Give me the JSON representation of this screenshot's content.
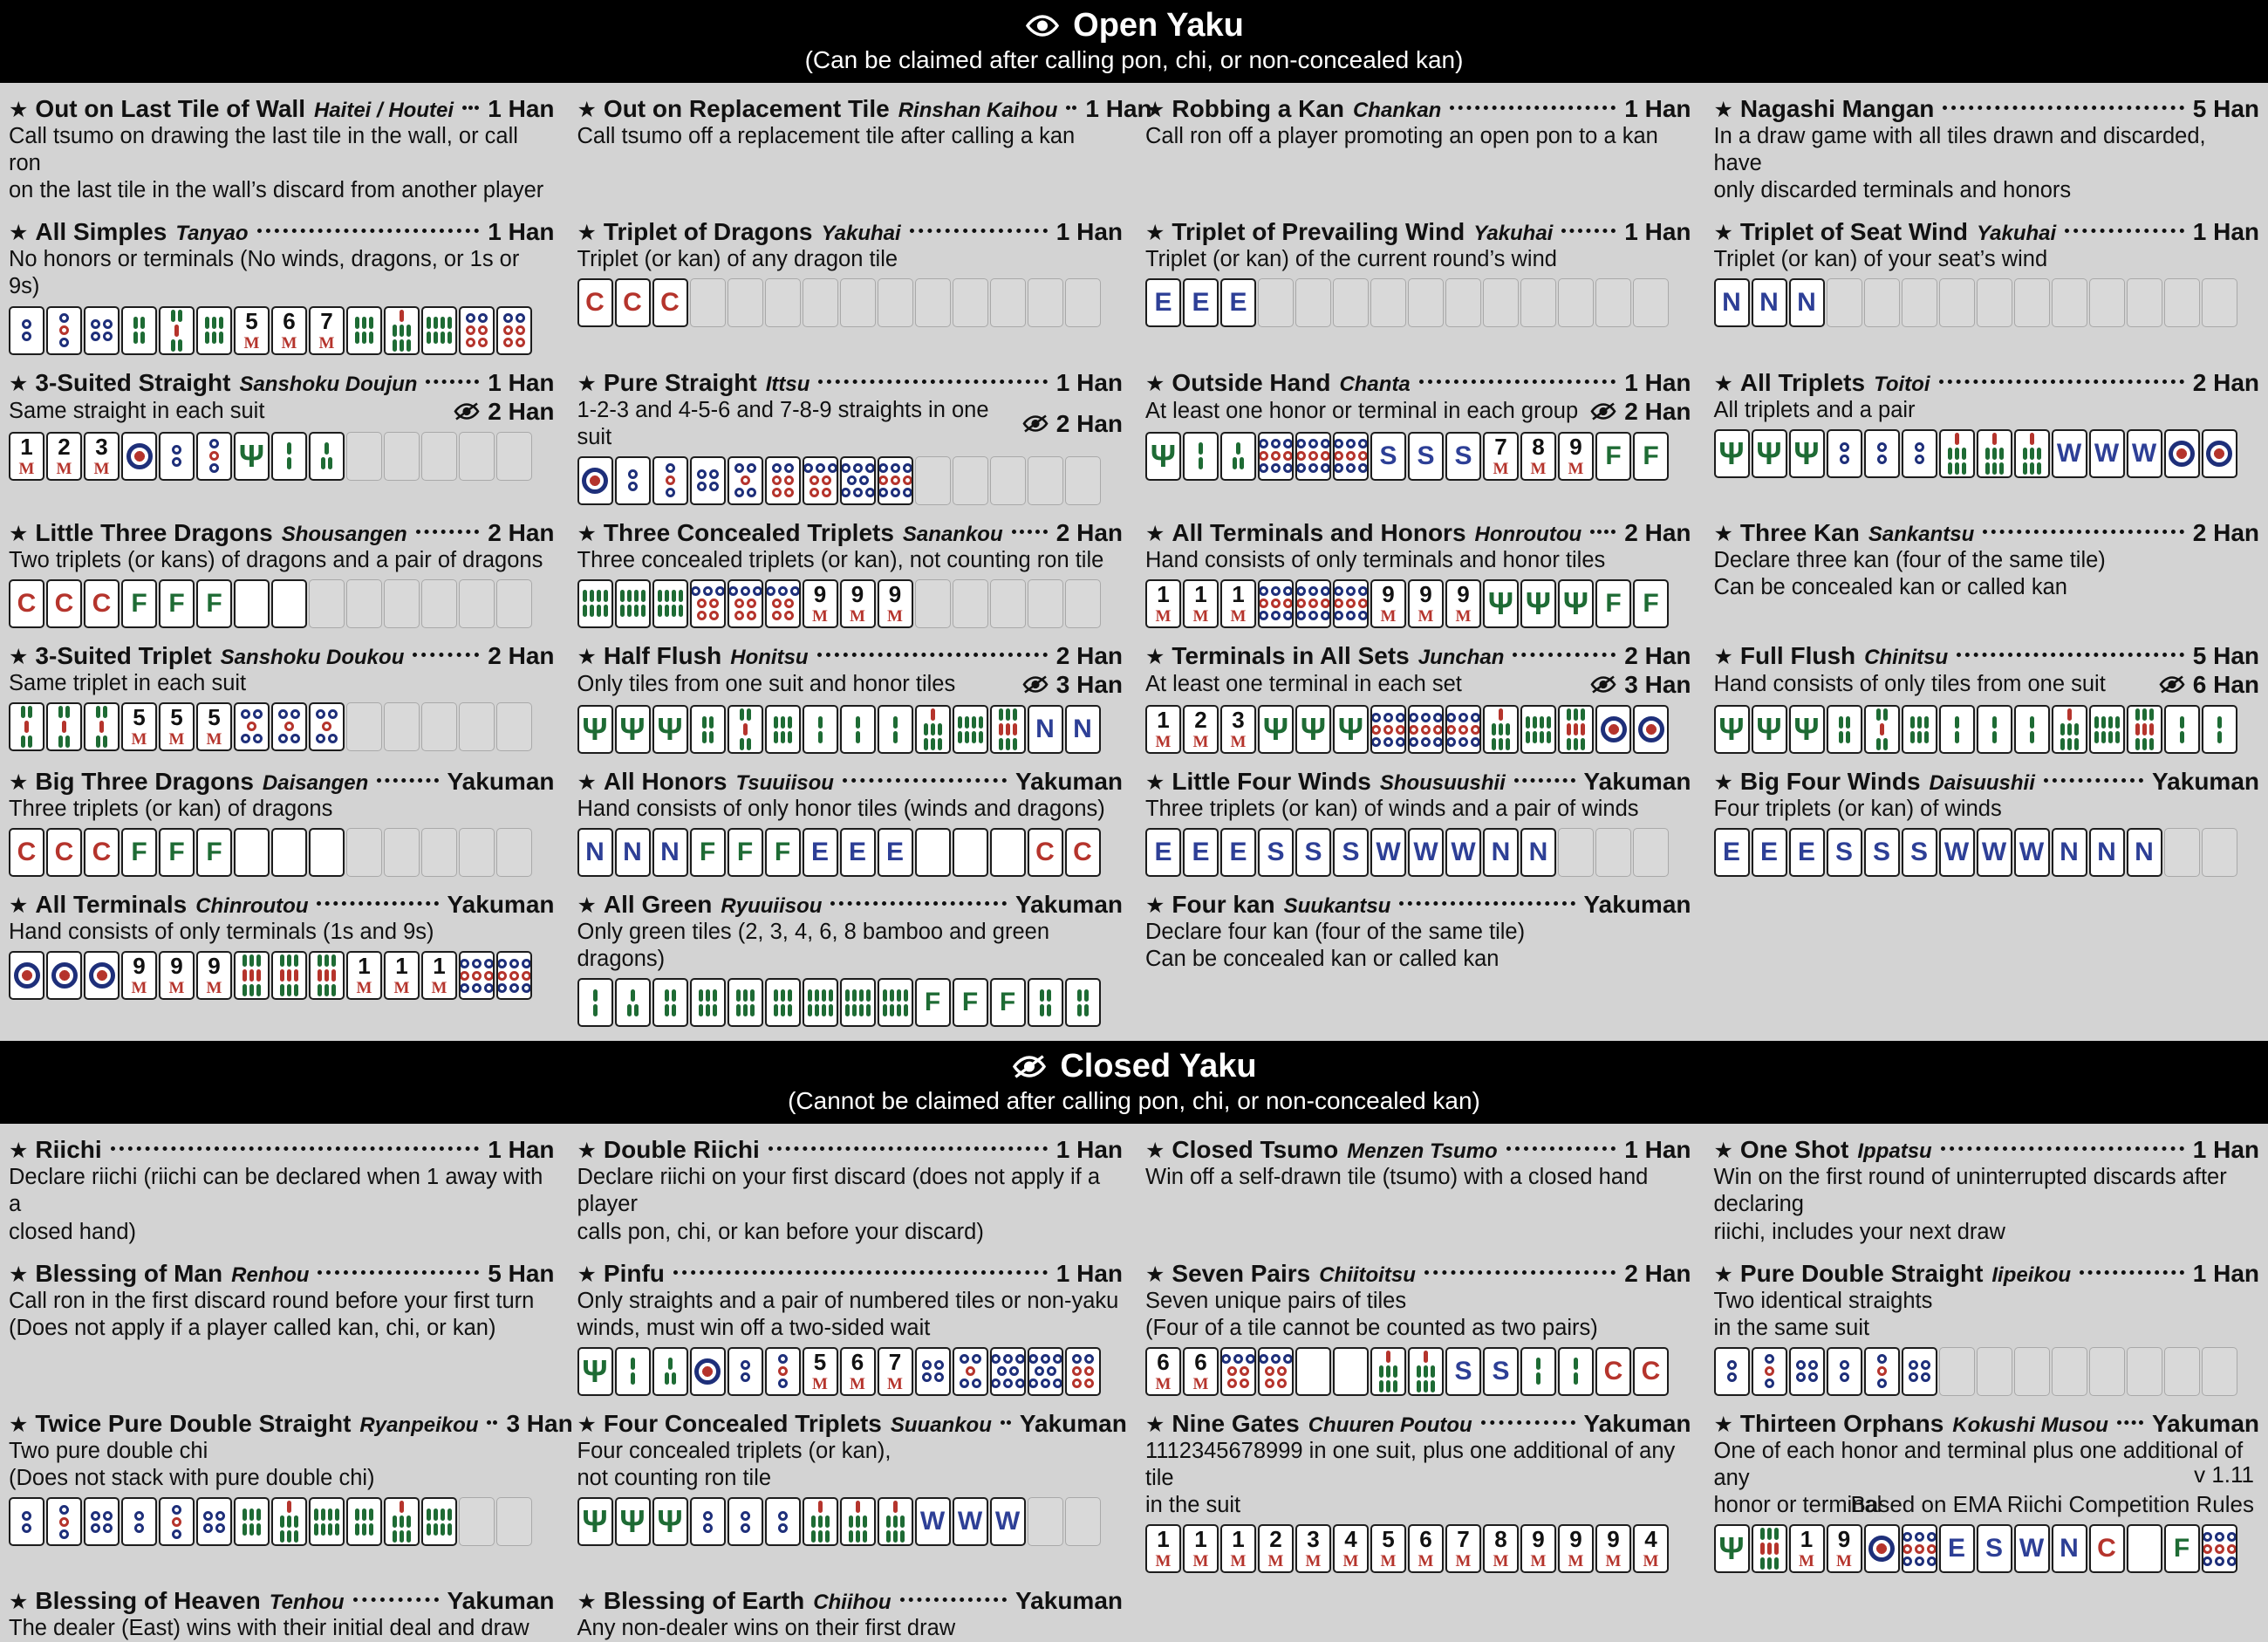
{
  "colors": {
    "background": "#d3d3d3",
    "header_bg": "#000000",
    "header_text": "#ffffff",
    "tile_red": "#b5342c",
    "tile_green": "#1e6b34",
    "tile_blue": "#2d3f96",
    "tile_navy": "#1e2f7a"
  },
  "footer": {
    "version": "v 1.11",
    "note": "Based on EMA Riichi Competition Rules"
  },
  "sections": [
    {
      "icon": "eye-icon",
      "title": "Open Yaku",
      "subtitle": "(Can be claimed after calling pon, chi, or non-concealed kan)",
      "rows": [
        [
          {
            "name": "Out on Last Tile of Wall",
            "romaji": "Haitei / Houtei",
            "han": "1 Han",
            "desc": [
              "Call tsumo on drawing the last tile in the wall, or call ron",
              "on the last tile in the wall’s discard from another player"
            ]
          },
          {
            "name": "Out on Replacement Tile",
            "romaji": "Rinshan Kaihou",
            "han": "1 Han",
            "desc": [
              "Call tsumo off a replacement tile after calling a kan"
            ]
          },
          {
            "name": "Robbing a Kan",
            "romaji": "Chankan",
            "han": "1 Han",
            "desc": [
              "Call ron off a player promoting an open pon to a kan"
            ]
          },
          {
            "name": "Nagashi Mangan",
            "romaji": "",
            "han": "5 Han",
            "desc": [
              "In a draw game with all tiles drawn and discarded, have",
              "only discarded terminals and honors"
            ]
          }
        ],
        [
          {
            "name": "All Simples",
            "romaji": "Tanyao",
            "han": "1 Han",
            "desc": [
              "No honors or terminals (No winds, dragons, or 1s or 9s)"
            ],
            "tiles": [
              "2p",
              "3p",
              "4p",
              "4s",
              "5s",
              "6s",
              "5m",
              "6m",
              "7m",
              "6s",
              "7s",
              "8s",
              "6p",
              "6p"
            ]
          },
          {
            "name": "Triplet of Dragons",
            "romaji": "Yakuhai",
            "han": "1 Han",
            "desc": [
              "Triplet (or kan) of any dragon tile"
            ],
            "tiles": [
              "C",
              "C",
              "C",
              "_",
              "_",
              "_",
              "_",
              "_",
              "_",
              "_",
              "_",
              "_",
              "_",
              "_"
            ]
          },
          {
            "name": "Triplet of Prevailing Wind",
            "romaji": "Yakuhai",
            "han": "1 Han",
            "desc": [
              "Triplet (or kan) of the current round’s wind"
            ],
            "tiles": [
              "E",
              "E",
              "E",
              "_",
              "_",
              "_",
              "_",
              "_",
              "_",
              "_",
              "_",
              "_",
              "_",
              "_"
            ]
          },
          {
            "name": "Triplet of Seat Wind",
            "romaji": "Yakuhai",
            "han": "1 Han",
            "desc": [
              "Triplet (or kan) of your seat’s wind"
            ],
            "tiles": [
              "N",
              "N",
              "N",
              "_",
              "_",
              "_",
              "_",
              "_",
              "_",
              "_",
              "_",
              "_",
              "_",
              "_"
            ]
          }
        ],
        [
          {
            "name": "3-Suited Straight",
            "romaji": "Sanshoku Doujun",
            "han": "1 Han",
            "han_closed": "2 Han",
            "desc": [
              "Same straight in each suit"
            ],
            "tiles": [
              "1m",
              "2m",
              "3m",
              "1p",
              "2p",
              "3p",
              "1s",
              "2s",
              "3s",
              "_",
              "_",
              "_",
              "_",
              "_"
            ]
          },
          {
            "name": "Pure Straight",
            "romaji": "Ittsu",
            "han": "1 Han",
            "han_closed": "2 Han",
            "desc": [
              "1-2-3 and 4-5-6 and 7-8-9 straights in one suit"
            ],
            "tiles": [
              "1p",
              "2p",
              "3p",
              "4p",
              "5p",
              "6p",
              "7p",
              "8p",
              "9p",
              "_",
              "_",
              "_",
              "_",
              "_"
            ]
          },
          {
            "name": "Outside Hand",
            "romaji": "Chanta",
            "han": "1 Han",
            "han_closed": "2 Han",
            "desc": [
              "At least one honor or terminal in each group"
            ],
            "tiles": [
              "1s",
              "2s",
              "3s",
              "9p",
              "9p",
              "9p",
              "S",
              "S",
              "S",
              "7m",
              "8m",
              "9m",
              "F",
              "F"
            ]
          },
          {
            "name": "All Triplets",
            "romaji": "Toitoi",
            "han": "2 Han",
            "desc": [
              "All triplets and a pair"
            ],
            "tiles": [
              "1s",
              "1s",
              "1s",
              "2p",
              "2p",
              "2p",
              "7s",
              "7s",
              "7s",
              "W",
              "W",
              "W",
              "1p",
              "1p"
            ]
          }
        ],
        [
          {
            "name": "Little Three Dragons",
            "romaji": "Shousangen",
            "han": "2 Han",
            "desc": [
              "Two triplets (or kans) of dragons and a pair of dragons"
            ],
            "tiles": [
              "C",
              "C",
              "C",
              "F",
              "F",
              "F",
              "B",
              "B",
              "_",
              "_",
              "_",
              "_",
              "_",
              "_"
            ]
          },
          {
            "name": "Three Concealed Triplets",
            "romaji": "Sanankou",
            "han": "2 Han",
            "desc": [
              "Three concealed triplets (or kan), not counting ron tile"
            ],
            "tiles": [
              "8s",
              "8s",
              "8s",
              "7p",
              "7p",
              "7p",
              "9m",
              "9m",
              "9m",
              "_",
              "_",
              "_",
              "_",
              "_"
            ]
          },
          {
            "name": "All Terminals and Honors",
            "romaji": "Honroutou",
            "han": "2 Han",
            "desc": [
              "Hand consists of only terminals and honor tiles"
            ],
            "tiles": [
              "1m",
              "1m",
              "1m",
              "9p",
              "9p",
              "9p",
              "9m",
              "9m",
              "9m",
              "1s",
              "1s",
              "1s",
              "F",
              "F"
            ]
          },
          {
            "name": "Three Kan",
            "romaji": "Sankantsu",
            "han": "2 Han",
            "desc": [
              "Declare three kan (four of the same tile)",
              "Can be concealed kan or called kan"
            ]
          }
        ],
        [
          {
            "name": "3-Suited Triplet",
            "romaji": "Sanshoku Doukou",
            "han": "2 Han",
            "desc": [
              "Same triplet in each suit"
            ],
            "tiles": [
              "5s",
              "5s",
              "5s",
              "5m",
              "5m",
              "5m",
              "5p",
              "5p",
              "5p",
              "_",
              "_",
              "_",
              "_",
              "_"
            ]
          },
          {
            "name": "Half Flush",
            "romaji": "Honitsu",
            "han": "2 Han",
            "han_closed": "3 Han",
            "desc": [
              "Only tiles from one suit and honor tiles"
            ],
            "tiles": [
              "1s",
              "1s",
              "1s",
              "4s",
              "5s",
              "6s",
              "2s",
              "2s",
              "2s",
              "7s",
              "8s",
              "9s",
              "N",
              "N"
            ]
          },
          {
            "name": "Terminals in All Sets",
            "romaji": "Junchan",
            "han": "2 Han",
            "han_closed": "3 Han",
            "desc": [
              "At least one terminal in each set"
            ],
            "tiles": [
              "1m",
              "2m",
              "3m",
              "1s",
              "1s",
              "1s",
              "9p",
              "9p",
              "9p",
              "7s",
              "8s",
              "9s",
              "1p",
              "1p"
            ]
          },
          {
            "name": "Full Flush",
            "romaji": "Chinitsu",
            "han": "5 Han",
            "han_closed": "6 Han",
            "desc": [
              "Hand consists of only tiles from one suit"
            ],
            "tiles": [
              "1s",
              "1s",
              "1s",
              "4s",
              "5s",
              "6s",
              "2s",
              "2s",
              "2s",
              "7s",
              "8s",
              "9s",
              "2s",
              "2s"
            ]
          }
        ],
        [
          {
            "name": "Big Three Dragons",
            "romaji": "Daisangen",
            "han": "Yakuman",
            "desc": [
              "Three triplets (or kan) of dragons"
            ],
            "tiles": [
              "C",
              "C",
              "C",
              "F",
              "F",
              "F",
              "B",
              "B",
              "B",
              "_",
              "_",
              "_",
              "_",
              "_"
            ]
          },
          {
            "name": "All Honors",
            "romaji": "Tsuuiisou",
            "han": "Yakuman",
            "desc": [
              "Hand consists of only honor tiles (winds and dragons)"
            ],
            "tiles": [
              "N",
              "N",
              "N",
              "F",
              "F",
              "F",
              "E",
              "E",
              "E",
              "B",
              "B",
              "B",
              "C",
              "C"
            ]
          },
          {
            "name": "Little Four Winds",
            "romaji": "Shousuushii",
            "han": "Yakuman",
            "desc": [
              "Three triplets (or kan) of winds and a pair of winds"
            ],
            "tiles": [
              "E",
              "E",
              "E",
              "S",
              "S",
              "S",
              "W",
              "W",
              "W",
              "N",
              "N",
              "_",
              "_",
              "_"
            ]
          },
          {
            "name": "Big Four Winds",
            "romaji": "Daisuushii",
            "han": "Yakuman",
            "desc": [
              "Four triplets (or kan) of winds"
            ],
            "tiles": [
              "E",
              "E",
              "E",
              "S",
              "S",
              "S",
              "W",
              "W",
              "W",
              "N",
              "N",
              "N",
              "_",
              "_"
            ]
          }
        ],
        [
          {
            "name": "All Terminals",
            "romaji": "Chinroutou",
            "han": "Yakuman",
            "desc": [
              "Hand consists of only terminals (1s and 9s)"
            ],
            "tiles": [
              "1p",
              "1p",
              "1p",
              "9m",
              "9m",
              "9m",
              "9s",
              "9s",
              "9s",
              "1m",
              "1m",
              "1m",
              "9p",
              "9p"
            ]
          },
          {
            "name": "All Green",
            "romaji": "Ryuuiisou",
            "han": "Yakuman",
            "desc": [
              "Only green tiles (2, 3, 4, 6, 8 bamboo and green dragons)"
            ],
            "tiles": [
              "2s",
              "3s",
              "4s",
              "6s",
              "6s",
              "6s",
              "8s",
              "8s",
              "8s",
              "F",
              "F",
              "F",
              "4s",
              "4s"
            ]
          },
          {
            "name": "Four kan",
            "romaji": "Suukantsu",
            "han": "Yakuman",
            "desc": [
              "Declare four kan (four of the same tile)",
              "Can be concealed kan or called kan"
            ]
          },
          null
        ]
      ]
    },
    {
      "icon": "eye-slash-icon",
      "title": "Closed Yaku",
      "subtitle": "(Cannot be claimed after calling pon, chi, or non-concealed kan)",
      "rows": [
        [
          {
            "name": "Riichi",
            "romaji": "",
            "han": "1 Han",
            "desc": [
              "Declare riichi (riichi can be declared when 1 away with a",
              "closed hand)"
            ]
          },
          {
            "name": "Double Riichi",
            "romaji": "",
            "han": "1 Han",
            "desc": [
              "Declare riichi on your first discard (does not apply if a player",
              "calls pon, chi, or kan before your discard)"
            ]
          },
          {
            "name": "Closed Tsumo",
            "romaji": "Menzen Tsumo",
            "han": "1 Han",
            "desc": [
              "Win off a self-drawn tile (tsumo) with a closed hand"
            ]
          },
          {
            "name": "One Shot",
            "romaji": "Ippatsu",
            "han": "1 Han",
            "desc": [
              "Win on the first round of uninterrupted discards after declaring",
              "riichi, includes your next draw"
            ]
          }
        ],
        [
          {
            "name": "Blessing of Man",
            "romaji": "Renhou",
            "han": "5 Han",
            "desc": [
              "Call ron in the first discard round before your first turn",
              "(Does not apply if a player called kan, chi, or kan)"
            ]
          },
          {
            "name": "Pinfu",
            "romaji": "",
            "han": "1 Han",
            "desc": [
              "Only straights and a pair of numbered tiles or non-yaku",
              "winds, must win off a two-sided wait"
            ],
            "tiles": [
              "1s",
              "2s",
              "3s",
              "1p",
              "2p",
              "3p",
              "5m",
              "6m",
              "7m",
              "4p",
              "5p",
              "8p",
              "8p",
              "6p"
            ]
          },
          {
            "name": "Seven Pairs",
            "romaji": "Chiitoitsu",
            "han": "2 Han",
            "desc": [
              "Seven unique pairs of tiles",
              "(Four of a tile cannot be counted as two pairs)"
            ],
            "tiles": [
              "6m",
              "6m",
              "7p",
              "7p",
              "B",
              "B",
              "7s",
              "7s",
              "S",
              "S",
              "2s",
              "2s",
              "C",
              "C"
            ]
          },
          {
            "name": "Pure Double Straight",
            "romaji": "Iipeikou",
            "han": "1 Han",
            "desc": [
              "Two identical straights",
              "in the same suit"
            ],
            "tiles": [
              "2p",
              "3p",
              "4p",
              "2p",
              "3p",
              "4p",
              "_",
              "_",
              "_",
              "_",
              "_",
              "_",
              "_",
              "_"
            ]
          }
        ],
        [
          {
            "name": "Twice Pure Double Straight",
            "romaji": "Ryanpeikou",
            "han": "3 Han",
            "desc": [
              "Two pure double chi",
              "(Does not stack with pure double chi)"
            ],
            "tiles": [
              "2p",
              "3p",
              "4p",
              "2p",
              "3p",
              "4p",
              "6s",
              "7s",
              "8s",
              "6s",
              "7s",
              "8s",
              "_",
              "_"
            ]
          },
          {
            "name": "Four Concealed Triplets",
            "romaji": "Suuankou",
            "han": "Yakuman",
            "desc": [
              "Four concealed triplets (or kan),",
              "not counting ron tile"
            ],
            "tiles": [
              "1s",
              "1s",
              "1s",
              "2p",
              "2p",
              "2p",
              "7s",
              "7s",
              "7s",
              "W",
              "W",
              "W",
              "_",
              "_"
            ]
          },
          {
            "name": "Nine Gates",
            "romaji": "Chuuren Poutou",
            "han": "Yakuman",
            "desc": [
              "1112345678999 in one suit, plus one additional of any tile",
              "in the suit"
            ],
            "tiles": [
              "1m",
              "1m",
              "1m",
              "2m",
              "3m",
              "4m",
              "5m",
              "6m",
              "7m",
              "8m",
              "9m",
              "9m",
              "9m",
              "4m"
            ]
          },
          {
            "name": "Thirteen Orphans",
            "romaji": "Kokushi Musou",
            "han": "Yakuman",
            "desc": [
              "One of each honor and terminal plus one additional of any",
              "honor or terminal"
            ],
            "tiles": [
              "1s",
              "9s",
              "1m",
              "9m",
              "1p",
              "9p",
              "E",
              "S",
              "W",
              "N",
              "C",
              "B",
              "F",
              "9p"
            ]
          }
        ],
        [
          {
            "name": "Blessing of Heaven",
            "romaji": "Tenhou",
            "han": "Yakuman",
            "desc": [
              "The dealer (East) wins with their initial deal and draw"
            ]
          },
          {
            "name": "Blessing of Earth",
            "romaji": "Chiihou",
            "han": "Yakuman",
            "desc": [
              "Any non-dealer wins on their first draw"
            ]
          },
          null,
          null
        ]
      ]
    }
  ]
}
